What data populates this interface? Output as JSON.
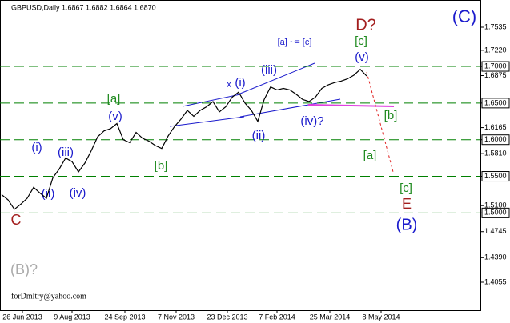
{
  "chart_data": {
    "type": "line",
    "title": "GBPUSD,Daily  1.6867 1.6882 1.6864 1.6870",
    "footer": "forDmitry@yahoo.com",
    "color": "#000000",
    "x": [
      0,
      4,
      8,
      12,
      16,
      20,
      24,
      28,
      32,
      36,
      40,
      44,
      48,
      52,
      56,
      60,
      64,
      68,
      72,
      76,
      80,
      84,
      88,
      92,
      96,
      100,
      104,
      108,
      112,
      116,
      120,
      124,
      128,
      132,
      136,
      140,
      144,
      148,
      152,
      156,
      160,
      164,
      168,
      172,
      176,
      180,
      184,
      188,
      192,
      196,
      200,
      204,
      208,
      212,
      216,
      220,
      224,
      228
    ],
    "values": [
      1.525,
      1.518,
      1.505,
      1.512,
      1.52,
      1.535,
      1.527,
      1.52,
      1.548,
      1.56,
      1.575,
      1.57,
      1.556,
      1.568,
      1.585,
      1.604,
      1.612,
      1.615,
      1.622,
      1.6,
      1.596,
      1.61,
      1.602,
      1.598,
      1.592,
      1.588,
      1.605,
      1.618,
      1.628,
      1.64,
      1.632,
      1.64,
      1.645,
      1.652,
      1.638,
      1.645,
      1.658,
      1.665,
      1.65,
      1.64,
      1.625,
      1.655,
      1.672,
      1.668,
      1.67,
      1.668,
      1.662,
      1.655,
      1.652,
      1.658,
      1.67,
      1.675,
      1.678,
      1.68,
      1.683,
      1.688,
      1.696,
      1.687
    ],
    "xlim": [
      0,
      299
    ],
    "xticks": [
      {
        "value": 13,
        "label": "26 Jun 2013"
      },
      {
        "value": 44,
        "label": "9 Aug 2013"
      },
      {
        "value": 77,
        "label": "24 Sep 2013"
      },
      {
        "value": 109,
        "label": "7 Nov 2013"
      },
      {
        "value": 141,
        "label": "23 Dec 2013"
      },
      {
        "value": 172,
        "label": "7 Feb 2014"
      },
      {
        "value": 205,
        "label": "25 Mar 2014"
      },
      {
        "value": 237,
        "label": "8 May 2014"
      }
    ],
    "ylim": [
      1.3673,
      1.7906
    ],
    "yticks": [
      1.7535,
      {
        "value": 1.722,
        "label": "1.7220"
      },
      {
        "value": 1.7,
        "label": "1.7000"
      },
      1.6875,
      {
        "value": 1.65,
        "label": "1.6500"
      },
      1.6165,
      {
        "value": 1.6,
        "label": "1.6000"
      },
      {
        "value": 1.581,
        "label": "1.5810"
      },
      {
        "value": 1.55,
        "label": "1.5500"
      },
      {
        "value": 1.51,
        "label": "1.5100"
      },
      {
        "value": 1.5,
        "label": "1.5000"
      },
      1.4745,
      {
        "value": 1.439,
        "label": "1.4390"
      },
      1.4055
    ],
    "levels": [
      1.7,
      1.65,
      1.6,
      1.55,
      1.5
    ],
    "level_color": "#008000",
    "annotations": [
      "(C)",
      "D?",
      "[c]",
      "(v)",
      "[a] ~= [c]",
      "(iii)",
      "x",
      "(i)",
      "[a]",
      "(v)",
      "(iii)",
      "(i)",
      "(iv)",
      "(ii)",
      "[b]",
      "(ii)",
      "(iv)?",
      "[b]",
      "[a]",
      "[c]",
      "E",
      "(B)",
      "C",
      "(B)?"
    ]
  }
}
